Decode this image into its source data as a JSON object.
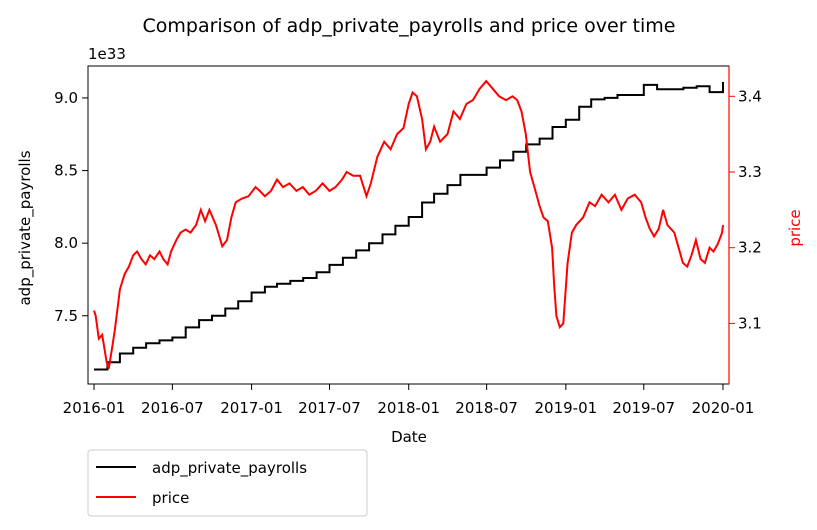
{
  "chart_data": {
    "type": "line",
    "title": "Comparison of adp_private_payrolls and price over time",
    "xlabel": "Date",
    "ylabel_left": "adp_private_payrolls",
    "ylabel_right": "price",
    "left_axis_multiplier": "1e33",
    "x_ticks": [
      "2016-01",
      "2016-07",
      "2017-01",
      "2017-07",
      "2018-01",
      "2018-07",
      "2019-01",
      "2019-07",
      "2020-01"
    ],
    "x_range": [
      "2015-12-18",
      "2020-01-15"
    ],
    "ylim_left": [
      7.03,
      9.22
    ],
    "ylim_right": [
      3.02,
      3.44
    ],
    "yticks_left": [
      7.5,
      8.0,
      8.5,
      9.0
    ],
    "yticks_left_labels": [
      "7.5",
      "8.0",
      "8.5",
      "9.0"
    ],
    "yticks_right": [
      3.1,
      3.2,
      3.3,
      3.4
    ],
    "yticks_right_labels": [
      "3.1",
      "3.2",
      "3.3",
      "3.4"
    ],
    "grid": false,
    "legend_placement": "below-left",
    "colors": {
      "adp_private_payrolls": "#000000",
      "price": "#ff0000",
      "axis_right": "#ff0000"
    },
    "series": [
      {
        "name": "adp_private_payrolls",
        "axis": "left",
        "step": true,
        "points": [
          [
            "2016-01-01",
            7.13
          ],
          [
            "2016-02-01",
            7.18
          ],
          [
            "2016-03-01",
            7.24
          ],
          [
            "2016-04-01",
            7.28
          ],
          [
            "2016-05-01",
            7.31
          ],
          [
            "2016-06-01",
            7.33
          ],
          [
            "2016-07-01",
            7.35
          ],
          [
            "2016-08-01",
            7.42
          ],
          [
            "2016-09-01",
            7.47
          ],
          [
            "2016-10-01",
            7.5
          ],
          [
            "2016-11-01",
            7.55
          ],
          [
            "2016-12-01",
            7.6
          ],
          [
            "2017-01-01",
            7.66
          ],
          [
            "2017-02-01",
            7.7
          ],
          [
            "2017-03-01",
            7.72
          ],
          [
            "2017-04-01",
            7.74
          ],
          [
            "2017-05-01",
            7.76
          ],
          [
            "2017-06-01",
            7.8
          ],
          [
            "2017-07-01",
            7.85
          ],
          [
            "2017-08-01",
            7.9
          ],
          [
            "2017-09-01",
            7.95
          ],
          [
            "2017-10-01",
            8.0
          ],
          [
            "2017-11-01",
            8.06
          ],
          [
            "2017-12-01",
            8.12
          ],
          [
            "2018-01-01",
            8.18
          ],
          [
            "2018-02-01",
            8.28
          ],
          [
            "2018-03-01",
            8.34
          ],
          [
            "2018-04-01",
            8.4
          ],
          [
            "2018-05-01",
            8.47
          ],
          [
            "2018-06-01",
            8.47
          ],
          [
            "2018-07-01",
            8.52
          ],
          [
            "2018-08-01",
            8.57
          ],
          [
            "2018-09-01",
            8.63
          ],
          [
            "2018-10-01",
            8.68
          ],
          [
            "2018-11-01",
            8.72
          ],
          [
            "2018-12-01",
            8.8
          ],
          [
            "2019-01-01",
            8.85
          ],
          [
            "2019-02-01",
            8.94
          ],
          [
            "2019-03-01",
            8.99
          ],
          [
            "2019-04-01",
            9.0
          ],
          [
            "2019-05-01",
            9.02
          ],
          [
            "2019-06-01",
            9.02
          ],
          [
            "2019-07-01",
            9.09
          ],
          [
            "2019-08-01",
            9.06
          ],
          [
            "2019-09-01",
            9.06
          ],
          [
            "2019-10-01",
            9.07
          ],
          [
            "2019-11-01",
            9.08
          ],
          [
            "2019-12-01",
            9.04
          ],
          [
            "2020-01-01",
            9.11
          ]
        ]
      },
      {
        "name": "price",
        "axis": "right",
        "step": false,
        "points": [
          [
            "2016-01-01",
            3.117
          ],
          [
            "2016-01-05",
            3.11
          ],
          [
            "2016-01-12",
            3.08
          ],
          [
            "2016-01-20",
            3.085
          ],
          [
            "2016-01-30",
            3.05
          ],
          [
            "2016-02-04",
            3.04
          ],
          [
            "2016-02-10",
            3.06
          ],
          [
            "2016-02-18",
            3.09
          ],
          [
            "2016-03-01",
            3.145
          ],
          [
            "2016-03-12",
            3.165
          ],
          [
            "2016-03-22",
            3.175
          ],
          [
            "2016-04-01",
            3.19
          ],
          [
            "2016-04-10",
            3.195
          ],
          [
            "2016-04-20",
            3.185
          ],
          [
            "2016-04-30",
            3.178
          ],
          [
            "2016-05-10",
            3.19
          ],
          [
            "2016-05-20",
            3.185
          ],
          [
            "2016-06-01",
            3.195
          ],
          [
            "2016-06-10",
            3.185
          ],
          [
            "2016-06-20",
            3.178
          ],
          [
            "2016-06-28",
            3.195
          ],
          [
            "2016-07-10",
            3.21
          ],
          [
            "2016-07-20",
            3.22
          ],
          [
            "2016-08-01",
            3.224
          ],
          [
            "2016-08-12",
            3.22
          ],
          [
            "2016-08-25",
            3.23
          ],
          [
            "2016-09-05",
            3.25
          ],
          [
            "2016-09-15",
            3.235
          ],
          [
            "2016-09-25",
            3.25
          ],
          [
            "2016-10-10",
            3.23
          ],
          [
            "2016-10-25",
            3.202
          ],
          [
            "2016-11-05",
            3.21
          ],
          [
            "2016-11-15",
            3.24
          ],
          [
            "2016-11-25",
            3.26
          ],
          [
            "2016-12-10",
            3.265
          ],
          [
            "2016-12-25",
            3.268
          ],
          [
            "2017-01-10",
            3.28
          ],
          [
            "2017-01-20",
            3.275
          ],
          [
            "2017-02-01",
            3.268
          ],
          [
            "2017-02-15",
            3.275
          ],
          [
            "2017-03-01",
            3.29
          ],
          [
            "2017-03-15",
            3.28
          ],
          [
            "2017-03-30",
            3.285
          ],
          [
            "2017-04-15",
            3.275
          ],
          [
            "2017-04-30",
            3.28
          ],
          [
            "2017-05-15",
            3.27
          ],
          [
            "2017-05-30",
            3.275
          ],
          [
            "2017-06-15",
            3.285
          ],
          [
            "2017-07-01",
            3.275
          ],
          [
            "2017-07-15",
            3.28
          ],
          [
            "2017-07-30",
            3.29
          ],
          [
            "2017-08-10",
            3.3
          ],
          [
            "2017-08-25",
            3.295
          ],
          [
            "2017-09-10",
            3.295
          ],
          [
            "2017-09-25",
            3.268
          ],
          [
            "2017-10-05",
            3.285
          ],
          [
            "2017-10-20",
            3.32
          ],
          [
            "2017-11-05",
            3.34
          ],
          [
            "2017-11-20",
            3.33
          ],
          [
            "2017-12-05",
            3.35
          ],
          [
            "2017-12-20",
            3.358
          ],
          [
            "2018-01-01",
            3.39
          ],
          [
            "2018-01-10",
            3.405
          ],
          [
            "2018-01-20",
            3.4
          ],
          [
            "2018-02-01",
            3.37
          ],
          [
            "2018-02-10",
            3.33
          ],
          [
            "2018-02-20",
            3.34
          ],
          [
            "2018-03-01",
            3.36
          ],
          [
            "2018-03-15",
            3.34
          ],
          [
            "2018-04-01",
            3.35
          ],
          [
            "2018-04-15",
            3.38
          ],
          [
            "2018-04-30",
            3.37
          ],
          [
            "2018-05-15",
            3.39
          ],
          [
            "2018-05-30",
            3.395
          ],
          [
            "2018-06-15",
            3.41
          ],
          [
            "2018-06-30",
            3.42
          ],
          [
            "2018-07-15",
            3.41
          ],
          [
            "2018-07-30",
            3.4
          ],
          [
            "2018-08-15",
            3.395
          ],
          [
            "2018-08-30",
            3.4
          ],
          [
            "2018-09-10",
            3.395
          ],
          [
            "2018-09-20",
            3.38
          ],
          [
            "2018-09-30",
            3.35
          ],
          [
            "2018-10-10",
            3.3
          ],
          [
            "2018-10-20",
            3.28
          ],
          [
            "2018-11-01",
            3.255
          ],
          [
            "2018-11-10",
            3.24
          ],
          [
            "2018-11-20",
            3.235
          ],
          [
            "2018-11-30",
            3.2
          ],
          [
            "2018-12-05",
            3.15
          ],
          [
            "2018-12-10",
            3.11
          ],
          [
            "2018-12-18",
            3.095
          ],
          [
            "2018-12-26",
            3.1
          ],
          [
            "2019-01-05",
            3.18
          ],
          [
            "2019-01-15",
            3.22
          ],
          [
            "2019-01-25",
            3.23
          ],
          [
            "2019-02-10",
            3.24
          ],
          [
            "2019-02-25",
            3.26
          ],
          [
            "2019-03-10",
            3.255
          ],
          [
            "2019-03-25",
            3.27
          ],
          [
            "2019-04-10",
            3.26
          ],
          [
            "2019-04-25",
            3.27
          ],
          [
            "2019-05-10",
            3.25
          ],
          [
            "2019-05-25",
            3.265
          ],
          [
            "2019-06-10",
            3.27
          ],
          [
            "2019-06-25",
            3.26
          ],
          [
            "2019-07-05",
            3.24
          ],
          [
            "2019-07-15",
            3.225
          ],
          [
            "2019-07-25",
            3.215
          ],
          [
            "2019-08-05",
            3.225
          ],
          [
            "2019-08-15",
            3.25
          ],
          [
            "2019-08-25",
            3.23
          ],
          [
            "2019-09-10",
            3.22
          ],
          [
            "2019-09-20",
            3.2
          ],
          [
            "2019-09-30",
            3.18
          ],
          [
            "2019-10-10",
            3.175
          ],
          [
            "2019-10-20",
            3.19
          ],
          [
            "2019-10-30",
            3.21
          ],
          [
            "2019-11-10",
            3.185
          ],
          [
            "2019-11-20",
            3.18
          ],
          [
            "2019-12-01",
            3.2
          ],
          [
            "2019-12-10",
            3.195
          ],
          [
            "2019-12-20",
            3.205
          ],
          [
            "2019-12-30",
            3.22
          ],
          [
            "2020-01-01",
            3.23
          ]
        ]
      }
    ]
  }
}
